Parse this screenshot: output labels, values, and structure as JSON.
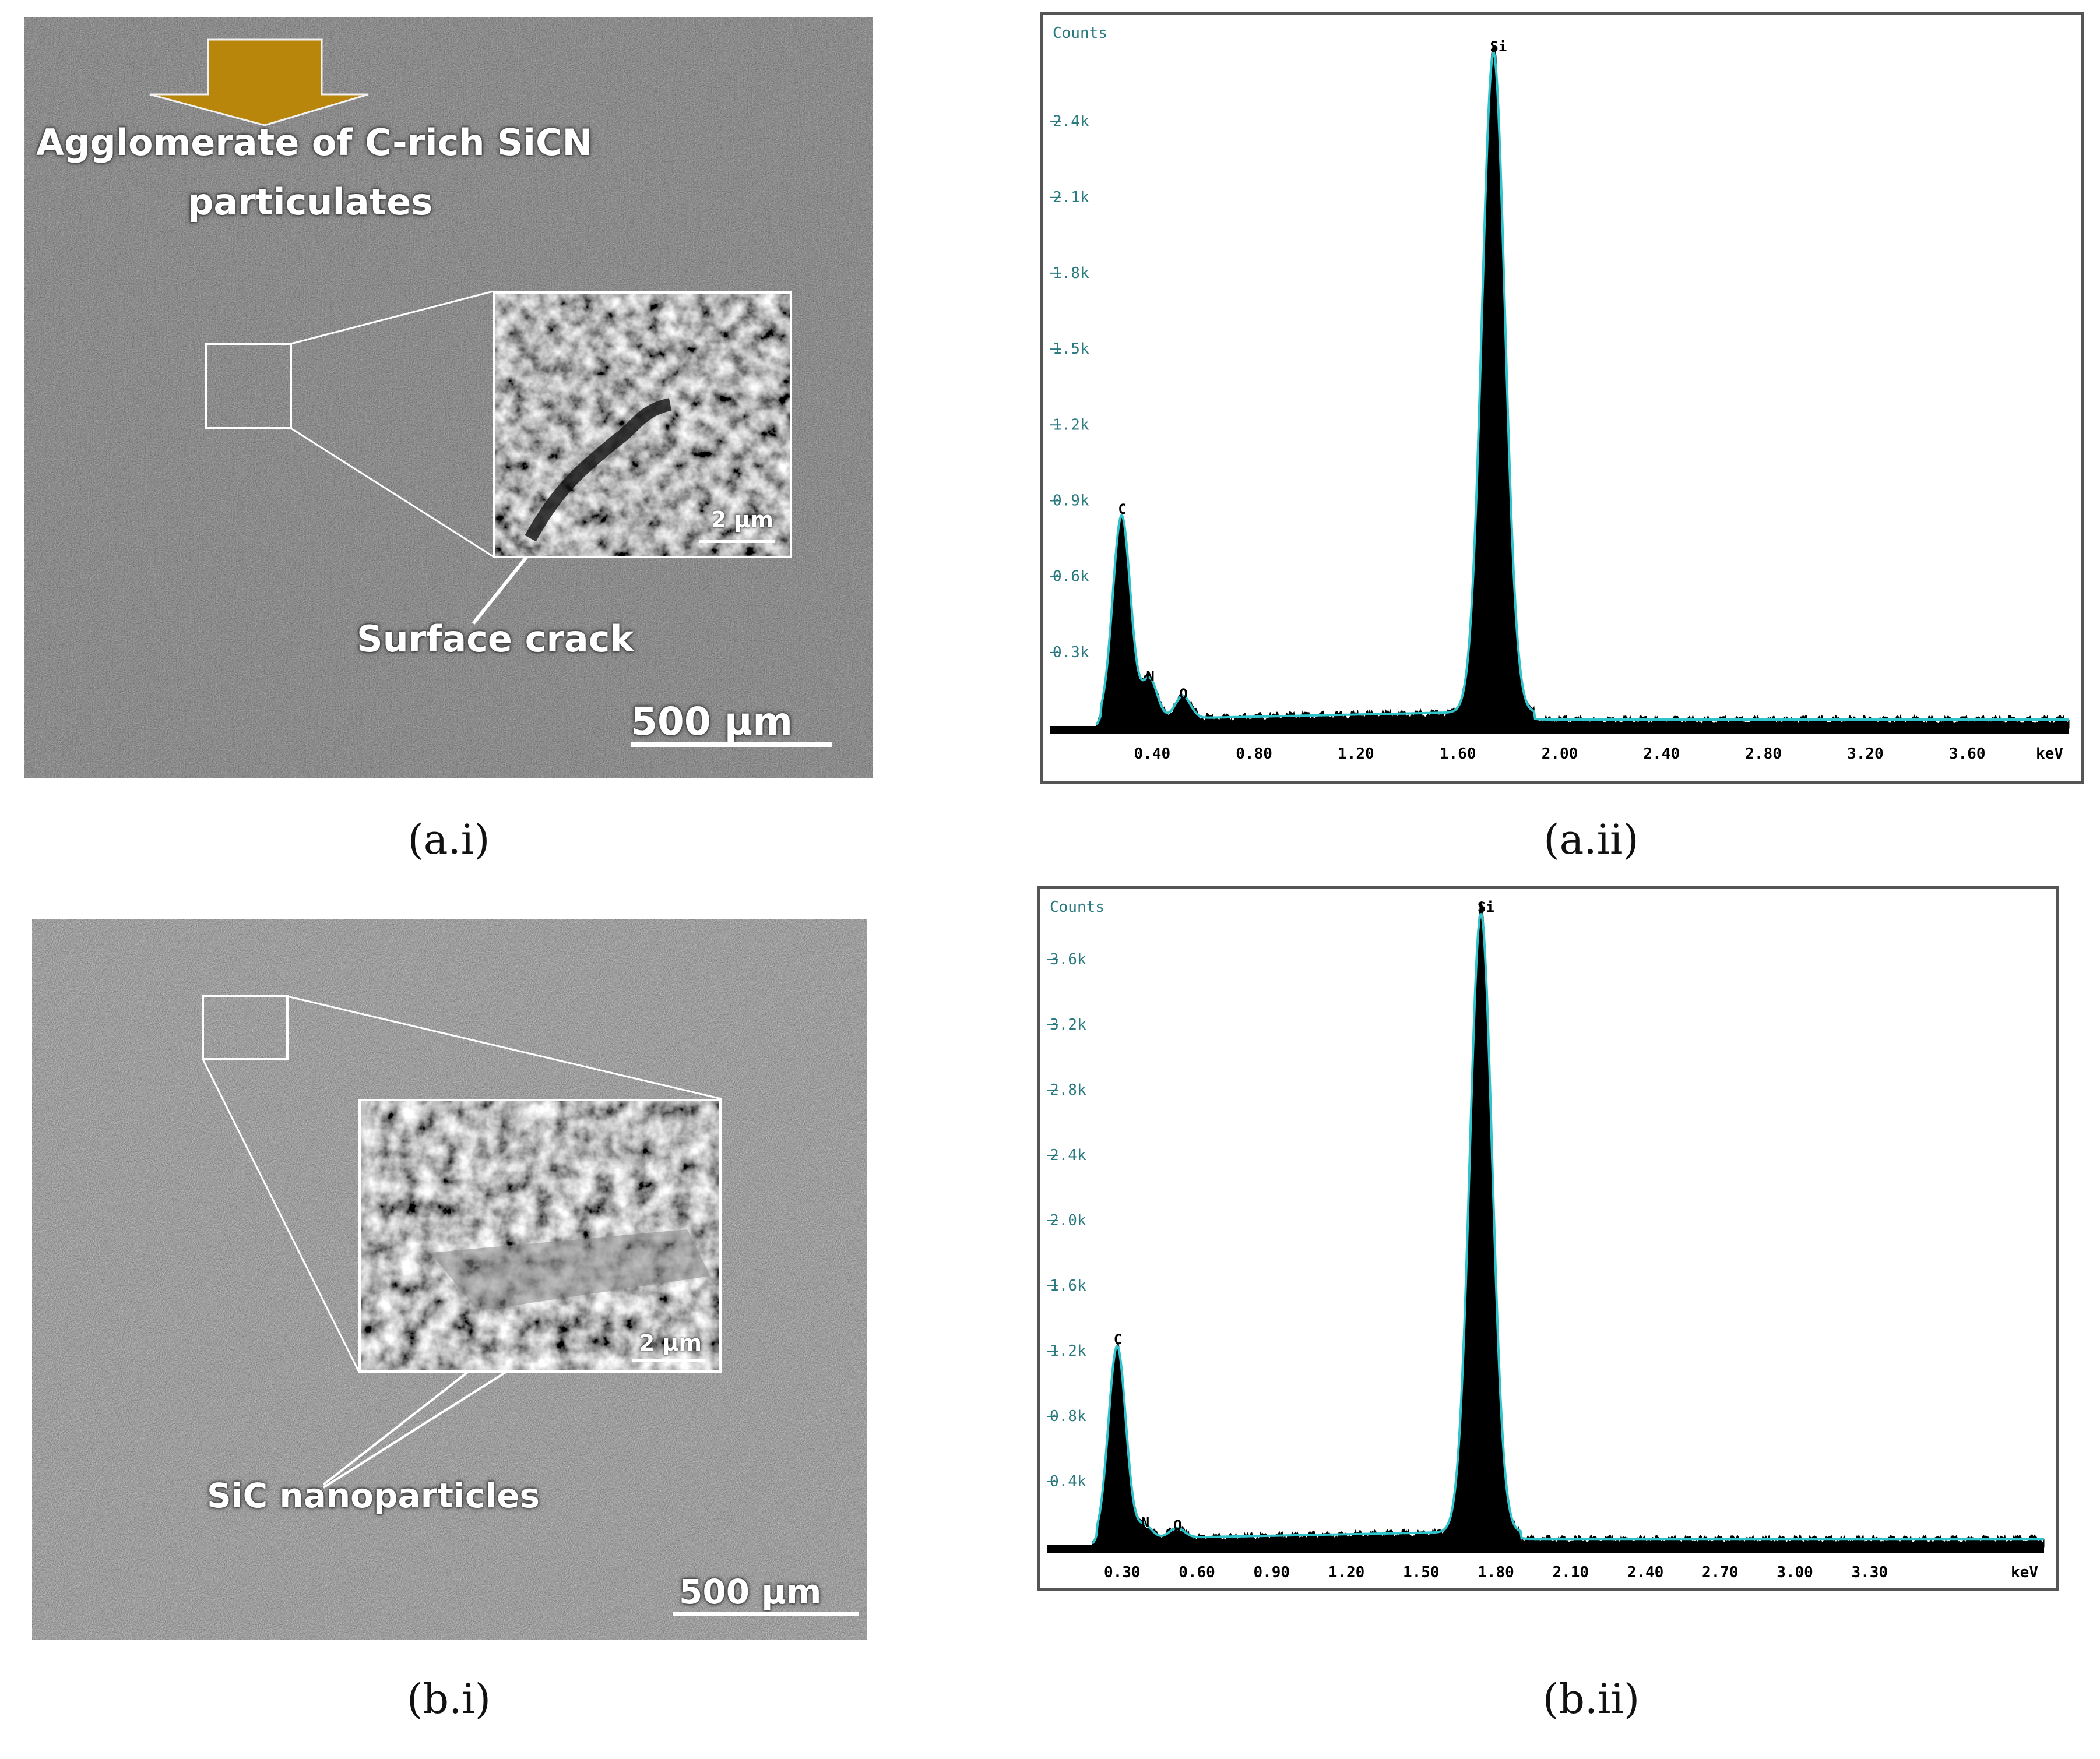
{
  "panels": {
    "a_i": {
      "caption": "(a.i)",
      "label_agglomerate_1": "Agglomerate of C-rich SiCN",
      "label_agglomerate_2": "particulates",
      "label_crack": "Surface crack",
      "inset_scale": "2 μm",
      "scale": "500 μm",
      "arrow_color": "#b8860b"
    },
    "a_ii": {
      "caption": "(a.ii)"
    },
    "b_i": {
      "caption": "(b.i)",
      "label_particles": "SiC nanoparticles",
      "inset_scale": "2 μm",
      "scale": "500 μm"
    },
    "b_ii": {
      "caption": "(b.ii)"
    }
  },
  "chart_data": [
    {
      "type": "line",
      "title": "",
      "ylabel": "Counts",
      "xlabel": "keV",
      "xlim": [
        0.0,
        4.0
      ],
      "ylim": [
        0,
        2.8
      ],
      "x_ticks": [
        0.4,
        0.8,
        1.2,
        1.6,
        2.0,
        2.4,
        2.8,
        3.2,
        3.6
      ],
      "x_tick_labels": [
        "0.40",
        "0.80",
        "1.20",
        "1.60",
        "2.00",
        "2.40",
        "2.80",
        "3.20",
        "3.60",
        "keV"
      ],
      "y_ticks": [
        0.3,
        0.6,
        0.9,
        1.2,
        1.5,
        1.8,
        2.1,
        2.4
      ],
      "y_tick_labels": [
        "0.3k",
        "0.6k",
        "0.9k",
        "1.2k",
        "1.5k",
        "1.8k",
        "2.1k",
        "2.4k"
      ],
      "peaks": [
        {
          "element": "C",
          "x": 0.28,
          "y": 0.82
        },
        {
          "element": "N",
          "x": 0.39,
          "y": 0.16
        },
        {
          "element": "O",
          "x": 0.52,
          "y": 0.09
        },
        {
          "element": "Si",
          "x": 1.74,
          "y": 2.65
        }
      ],
      "colors": {
        "fill": "#000000",
        "fit": "#2fc4cc",
        "text": "#2a7a80"
      }
    },
    {
      "type": "line",
      "title": "",
      "ylabel": "Counts",
      "xlabel": "keV",
      "xlim": [
        0.0,
        4.0
      ],
      "ylim": [
        0,
        4.0
      ],
      "x_ticks": [
        0.3,
        0.6,
        0.9,
        1.2,
        1.5,
        1.8,
        2.1,
        2.4,
        2.7,
        3.0,
        3.3
      ],
      "x_tick_labels": [
        "0.30",
        "0.60",
        "0.90",
        "1.20",
        "1.50",
        "1.80",
        "2.10",
        "2.40",
        "2.70",
        "3.00",
        "3.30",
        "keV"
      ],
      "y_ticks": [
        0.4,
        0.8,
        1.2,
        1.6,
        2.0,
        2.4,
        2.8,
        3.2,
        3.6
      ],
      "y_tick_labels": [
        "0.4k",
        "0.8k",
        "1.2k",
        "1.6k",
        "2.0k",
        "2.4k",
        "2.8k",
        "3.2k",
        "3.6k"
      ],
      "peaks": [
        {
          "element": "C",
          "x": 0.28,
          "y": 1.2
        },
        {
          "element": "N",
          "x": 0.39,
          "y": 0.08
        },
        {
          "element": "O",
          "x": 0.52,
          "y": 0.06
        },
        {
          "element": "Si",
          "x": 1.74,
          "y": 3.85
        }
      ],
      "colors": {
        "fill": "#000000",
        "fit": "#2fc4cc",
        "text": "#2a7a80"
      }
    }
  ]
}
